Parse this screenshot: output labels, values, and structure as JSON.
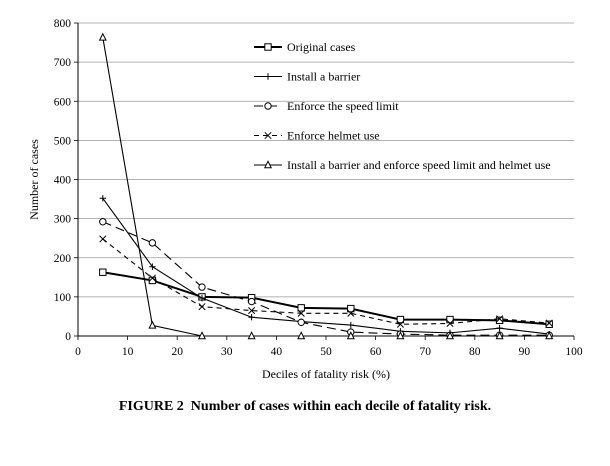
{
  "caption": "FIGURE 2  Number of cases within each decile of fatality risk.",
  "chart_data": {
    "type": "line",
    "xlabel": "Deciles of fatality risk (%)",
    "ylabel": "Number of cases",
    "xlim": [
      0,
      100
    ],
    "ylim": [
      0,
      800
    ],
    "xticks": [
      "0",
      "10",
      "20",
      "30",
      "40",
      "50",
      "60",
      "70",
      "80",
      "90",
      "100"
    ],
    "yticks": [
      "0",
      "100",
      "200",
      "300",
      "400",
      "500",
      "600",
      "700",
      "800"
    ],
    "grid": "horizontal",
    "legend_position": "top-right",
    "x": [
      5,
      15,
      25,
      35,
      45,
      55,
      65,
      75,
      85,
      95
    ],
    "series": [
      {
        "name": "Original cases",
        "marker": "square",
        "dash": "solid",
        "weight": "bold",
        "values": [
          163,
          142,
          100,
          98,
          72,
          70,
          42,
          42,
          40,
          30
        ]
      },
      {
        "name": "Install a barrier",
        "marker": "plus",
        "dash": "solid",
        "weight": "normal",
        "values": [
          352,
          177,
          97,
          48,
          37,
          28,
          12,
          8,
          20,
          5
        ]
      },
      {
        "name": "Enforce the speed limit",
        "marker": "circle",
        "dash": "long-dash",
        "weight": "normal",
        "values": [
          292,
          238,
          125,
          88,
          35,
          10,
          5,
          2,
          2,
          2
        ]
      },
      {
        "name": "Enforce helmet use",
        "marker": "x",
        "dash": "short-dash",
        "weight": "normal",
        "values": [
          248,
          148,
          75,
          65,
          58,
          58,
          30,
          32,
          44,
          33
        ]
      },
      {
        "name": "Install a barrier and enforce speed limit and helmet use",
        "marker": "triangle",
        "dash": "solid",
        "weight": "normal",
        "values": [
          763,
          27,
          0,
          0,
          0,
          0,
          0,
          0,
          0,
          0
        ]
      }
    ]
  }
}
